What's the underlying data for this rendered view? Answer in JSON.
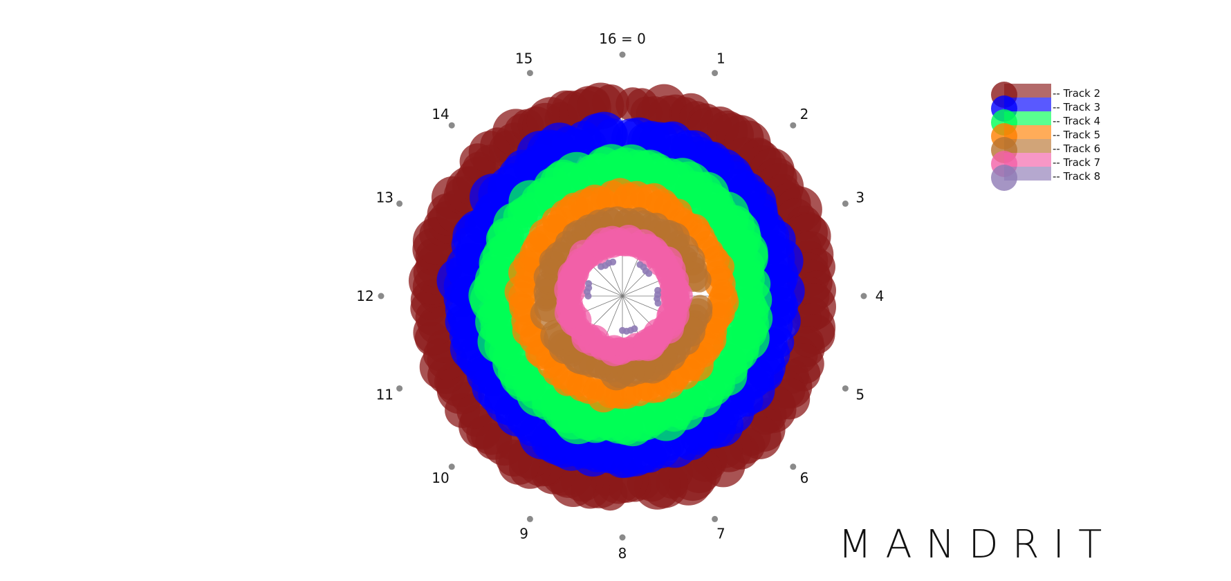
{
  "chart_data": {
    "type": "scatter",
    "coordinate_system": "polar",
    "title": "",
    "angular_ticks": [
      "16 = 0",
      "1",
      "2",
      "3",
      "4",
      "5",
      "6",
      "7",
      "8",
      "9",
      "10",
      "11",
      "12",
      "13",
      "14",
      "15"
    ],
    "angular_range": [
      0,
      16
    ],
    "radial_gridlines": 16,
    "legend_position": "top-right",
    "series": [
      {
        "name": "Track 2",
        "color": "#8b1a1a",
        "ring_order": 1,
        "coverage": [
          [
            0.1,
            15.9
          ]
        ],
        "marker": "large",
        "density": 160
      },
      {
        "name": "Track 3",
        "color": "#0000ff",
        "ring_order": 2,
        "coverage": [
          [
            0.1,
            15.9
          ]
        ],
        "marker": "large",
        "density": 140
      },
      {
        "name": "Track 4",
        "color": "#00ff55",
        "ring_order": 3,
        "coverage": [
          [
            0,
            16
          ]
        ],
        "marker": "large",
        "density": 120
      },
      {
        "name": "Track 5",
        "color": "#ff8000",
        "ring_order": 4,
        "coverage": [
          [
            0,
            16
          ]
        ],
        "marker": "medium",
        "density": 110
      },
      {
        "name": "Track 6",
        "color": "#b8732f",
        "ring_order": 5,
        "coverage": [
          [
            0,
            3.6
          ],
          [
            4.3,
            10.8
          ],
          [
            11.4,
            16
          ]
        ],
        "marker": "medium",
        "density": 90
      },
      {
        "name": "Track 7",
        "color": "#f260a8",
        "ring_order": 6,
        "coverage": [
          [
            0,
            16
          ]
        ],
        "marker": "medium",
        "density": 90
      },
      {
        "name": "Track 8",
        "color": "#8e7ab5",
        "ring_order": 7,
        "marker": "small",
        "points": [
          1.3,
          1.6,
          1.9,
          2.2,
          3.6,
          3.9,
          4.2,
          4.5,
          7.1,
          7.4,
          7.7,
          8.0,
          12.0,
          12.3,
          12.6,
          12.9,
          14.4,
          14.7,
          15.0,
          15.3
        ]
      }
    ]
  },
  "brand": {
    "text": "MANDRIT"
  }
}
